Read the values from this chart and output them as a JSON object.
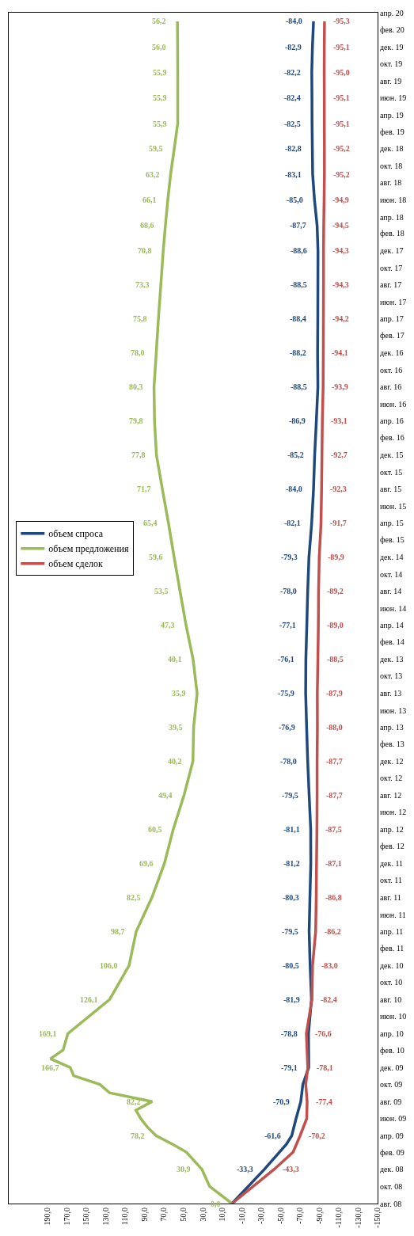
{
  "chart_data": {
    "type": "line",
    "orientation": "horizontal",
    "legend": "left",
    "marker": "none",
    "line_style": "solid",
    "ylim": [
      "2008-08",
      "2020-04"
    ],
    "yticks": [
      {
        "value": "2008-08",
        "label": "авг. 08"
      },
      {
        "value": "2008-10",
        "label": "окт. 08"
      },
      {
        "value": "2008-12",
        "label": "дек. 08"
      },
      {
        "value": "2009-02",
        "label": "фев. 09"
      },
      {
        "value": "2009-04",
        "label": "апр. 09"
      },
      {
        "value": "2009-06",
        "label": "июн. 09"
      },
      {
        "value": "2009-08",
        "label": "авг. 09"
      },
      {
        "value": "2009-10",
        "label": "окт. 09"
      },
      {
        "value": "2009-12",
        "label": "дек. 09"
      },
      {
        "value": "2010-02",
        "label": "фев. 10"
      },
      {
        "value": "2010-04",
        "label": "апр. 10"
      },
      {
        "value": "2010-06",
        "label": "июн. 10"
      },
      {
        "value": "2010-08",
        "label": "авг. 10"
      },
      {
        "value": "2010-10",
        "label": "окт. 10"
      },
      {
        "value": "2010-12",
        "label": "дек. 10"
      },
      {
        "value": "2011-02",
        "label": "фев. 11"
      },
      {
        "value": "2011-04",
        "label": "апр. 11"
      },
      {
        "value": "2011-06",
        "label": "июн. 11"
      },
      {
        "value": "2011-08",
        "label": "авг. 11"
      },
      {
        "value": "2011-10",
        "label": "окт. 11"
      },
      {
        "value": "2011-12",
        "label": "дек. 11"
      },
      {
        "value": "2012-02",
        "label": "фев. 12"
      },
      {
        "value": "2012-04",
        "label": "апр. 12"
      },
      {
        "value": "2012-06",
        "label": "июн. 12"
      },
      {
        "value": "2012-08",
        "label": "авг. 12"
      },
      {
        "value": "2012-10",
        "label": "окт. 12"
      },
      {
        "value": "2012-12",
        "label": "дек. 12"
      },
      {
        "value": "2013-02",
        "label": "фев. 13"
      },
      {
        "value": "2013-04",
        "label": "апр. 13"
      },
      {
        "value": "2013-06",
        "label": "июн. 13"
      },
      {
        "value": "2013-08",
        "label": "авг. 13"
      },
      {
        "value": "2013-10",
        "label": "окт. 13"
      },
      {
        "value": "2013-12",
        "label": "дек. 13"
      },
      {
        "value": "2014-02",
        "label": "фев. 14"
      },
      {
        "value": "2014-04",
        "label": "апр. 14"
      },
      {
        "value": "2014-06",
        "label": "июн. 14"
      },
      {
        "value": "2014-08",
        "label": "авг. 14"
      },
      {
        "value": "2014-10",
        "label": "окт. 14"
      },
      {
        "value": "2014-12",
        "label": "дек. 14"
      },
      {
        "value": "2015-02",
        "label": "фев. 15"
      },
      {
        "value": "2015-04",
        "label": "апр. 15"
      },
      {
        "value": "2015-06",
        "label": "июн. 15"
      },
      {
        "value": "2015-08",
        "label": "авг. 15"
      },
      {
        "value": "2015-10",
        "label": "окт. 15"
      },
      {
        "value": "2015-12",
        "label": "дек. 15"
      },
      {
        "value": "2016-02",
        "label": "фев. 16"
      },
      {
        "value": "2016-04",
        "label": "апр. 16"
      },
      {
        "value": "2016-06",
        "label": "июн. 16"
      },
      {
        "value": "2016-08",
        "label": "авг. 16"
      },
      {
        "value": "2016-10",
        "label": "окт. 16"
      },
      {
        "value": "2016-12",
        "label": "дек. 16"
      },
      {
        "value": "2017-02",
        "label": "фев. 17"
      },
      {
        "value": "2017-04",
        "label": "апр. 17"
      },
      {
        "value": "2017-06",
        "label": "июн. 17"
      },
      {
        "value": "2017-08",
        "label": "авг. 17"
      },
      {
        "value": "2017-10",
        "label": "окт. 17"
      },
      {
        "value": "2017-12",
        "label": "дек. 17"
      },
      {
        "value": "2018-02",
        "label": "фев. 18"
      },
      {
        "value": "2018-04",
        "label": "апр. 18"
      },
      {
        "value": "2018-06",
        "label": "июн. 18"
      },
      {
        "value": "2018-08",
        "label": "авг. 18"
      },
      {
        "value": "2018-10",
        "label": "окт. 18"
      },
      {
        "value": "2018-12",
        "label": "дек. 18"
      },
      {
        "value": "2019-02",
        "label": "фев. 19"
      },
      {
        "value": "2019-04",
        "label": "апр. 19"
      },
      {
        "value": "2019-06",
        "label": "июн. 19"
      },
      {
        "value": "2019-08",
        "label": "авг. 19"
      },
      {
        "value": "2019-10",
        "label": "окт. 19"
      },
      {
        "value": "2019-12",
        "label": "дек. 19"
      },
      {
        "value": "2020-02",
        "label": "фев. 20"
      },
      {
        "value": "2020-04",
        "label": "апр. 20"
      }
    ],
    "xlim": [
      230,
      -150
    ],
    "xticks": [
      {
        "value": 190,
        "label": "190,0"
      },
      {
        "value": 170,
        "label": "170,0"
      },
      {
        "value": 150,
        "label": "150,0"
      },
      {
        "value": 130,
        "label": "130,0"
      },
      {
        "value": 110,
        "label": "110,0"
      },
      {
        "value": 90,
        "label": "90,0"
      },
      {
        "value": 70,
        "label": "70,0"
      },
      {
        "value": 50,
        "label": "50,0"
      },
      {
        "value": 30,
        "label": "30,0"
      },
      {
        "value": 10,
        "label": "10,0"
      },
      {
        "value": -10,
        "label": "-10,0"
      },
      {
        "value": -30,
        "label": "-30,0"
      },
      {
        "value": -50,
        "label": "-50,0"
      },
      {
        "value": -70,
        "label": "-70,0"
      },
      {
        "value": -90,
        "label": "-90,0"
      },
      {
        "value": -110,
        "label": "-110,0"
      },
      {
        "value": -130,
        "label": "-130,0"
      },
      {
        "value": -150,
        "label": "-150,0"
      }
    ],
    "series": [
      {
        "name": "объем спроса",
        "color": "#1f497d",
        "x": [
          "2008-08",
          "2008-12",
          "2009-03",
          "2009-04",
          "2009-06",
          "2009-08",
          "2009-10",
          "2009-12",
          "2010-04",
          "2010-08",
          "2010-12",
          "2011-04",
          "2011-08",
          "2011-12",
          "2012-04",
          "2012-08",
          "2012-12",
          "2013-04",
          "2013-08",
          "2013-12",
          "2014-04",
          "2014-08",
          "2014-12",
          "2015-04",
          "2015-08",
          "2015-12",
          "2016-04",
          "2016-08",
          "2016-12",
          "2017-04",
          "2017-08",
          "2017-12",
          "2018-03",
          "2018-06",
          "2018-09",
          "2018-12",
          "2019-03",
          "2019-06",
          "2019-09",
          "2019-12",
          "2020-03"
        ],
        "values": [
          0,
          -33.3,
          -56,
          -61.6,
          -66,
          -70.9,
          -73,
          -79.1,
          -78.8,
          -81.9,
          -80.5,
          -79.5,
          -80.3,
          -81.2,
          -81.1,
          -79.5,
          -78.0,
          -76.9,
          -75.9,
          -76.1,
          -77.1,
          -78.0,
          -79.3,
          -82.1,
          -84.0,
          -85.2,
          -86.9,
          -88.5,
          -88.2,
          -88.4,
          -88.5,
          -88.6,
          -87.7,
          -85.0,
          -83.1,
          -82.8,
          -82.5,
          -82.4,
          -82.2,
          -82.9,
          -84.0
        ],
        "value_labels": [
          null,
          "-33,3",
          null,
          "-61,6",
          null,
          "-70,9",
          null,
          "-79,1",
          "-78,8",
          "-81,9",
          "-80,5",
          "-79,5",
          "-80,3",
          "-81,2",
          "-81,1",
          "-79,5",
          "-78,0",
          "-76,9",
          "-75,9",
          "-76,1",
          "-77,1",
          "-78,0",
          "-79,3",
          "-82,1",
          "-84,0",
          "-85,2",
          "-86,9",
          "-88,5",
          "-88,2",
          "-88,4",
          "-88,5",
          "-88,6",
          "-87,7",
          "-85,0",
          "-83,1",
          "-82,8",
          "-82,5",
          "-82,4",
          "-82,2",
          "-82,9",
          "-84,0"
        ]
      },
      {
        "name": "объем предложения",
        "color": "#9bbb59",
        "x": [
          "2008-08",
          "2008-10",
          "2008-12",
          "2009-02",
          "2009-03",
          "2009-04",
          "2009-05",
          "2009-06",
          "2009-07",
          "2009-08",
          "2009-09",
          "2009-10",
          "2009-11",
          "2009-12",
          "2010-01",
          "2010-02",
          "2010-04",
          "2010-08",
          "2010-12",
          "2011-04",
          "2011-08",
          "2011-12",
          "2012-04",
          "2012-08",
          "2012-12",
          "2013-04",
          "2013-08",
          "2013-12",
          "2014-04",
          "2014-08",
          "2014-12",
          "2015-04",
          "2015-08",
          "2015-12",
          "2016-04",
          "2016-08",
          "2016-12",
          "2017-04",
          "2017-08",
          "2017-12",
          "2018-03",
          "2018-06",
          "2018-09",
          "2018-12",
          "2019-03",
          "2019-06",
          "2019-09",
          "2019-12",
          "2020-03"
        ],
        "values": [
          0.0,
          23,
          30.9,
          47,
          61,
          78.2,
          87,
          94,
          99,
          82.2,
          126,
          136,
          163,
          166.7,
          187,
          174,
          169.1,
          126.1,
          106.0,
          98.7,
          82.5,
          69.6,
          60.5,
          49.4,
          40.2,
          39.5,
          35.9,
          40.1,
          47.3,
          53.5,
          59.6,
          65.4,
          71.7,
          77.8,
          79.8,
          80.3,
          78.0,
          75.8,
          73.3,
          70.8,
          68.6,
          66.1,
          63.2,
          59.5,
          55.9,
          55.9,
          55.9,
          56.0,
          56.2
        ],
        "value_labels": [
          "0,0",
          null,
          "30,9",
          null,
          null,
          "78,2",
          null,
          null,
          null,
          "82,2",
          null,
          null,
          null,
          "166,7",
          null,
          null,
          "169,1",
          "126,1",
          "106,0",
          "98,7",
          "82,5",
          "69,6",
          "60,5",
          "49,4",
          "40,2",
          "39,5",
          "35,9",
          "40,1",
          "47,3",
          "53,5",
          "59,6",
          "65,4",
          "71,7",
          "77,8",
          "79,8",
          "80,3",
          "78,0",
          "75,8",
          "73,3",
          "70,8",
          "68,6",
          "66,1",
          "63,2",
          "59,5",
          "55,9",
          "55,9",
          "55,9",
          "56,0",
          "56,2"
        ]
      },
      {
        "name": "объем сделок",
        "color": "#c0504d",
        "x": [
          "2008-08",
          "2008-12",
          "2009-02",
          "2009-04",
          "2009-06",
          "2009-08",
          "2009-10",
          "2009-12",
          "2010-04",
          "2010-08",
          "2010-12",
          "2011-04",
          "2011-08",
          "2011-12",
          "2012-04",
          "2012-08",
          "2012-12",
          "2013-04",
          "2013-08",
          "2013-12",
          "2014-04",
          "2014-08",
          "2014-12",
          "2015-04",
          "2015-08",
          "2015-12",
          "2016-04",
          "2016-08",
          "2016-12",
          "2017-04",
          "2017-08",
          "2017-12",
          "2018-03",
          "2018-06",
          "2018-09",
          "2018-12",
          "2019-03",
          "2019-06",
          "2019-09",
          "2019-12",
          "2020-03"
        ],
        "values": [
          0,
          -43.3,
          -63,
          -70.2,
          -77,
          -77.4,
          -76,
          -78.1,
          -76.6,
          -82.4,
          -83.0,
          -86.2,
          -86.8,
          -87.1,
          -87.5,
          -87.7,
          -87.7,
          -88.0,
          -87.9,
          -88.5,
          -89.0,
          -89.2,
          -89.9,
          -91.7,
          -92.3,
          -92.7,
          -93.1,
          -93.9,
          -94.1,
          -94.2,
          -94.3,
          -94.3,
          -94.5,
          -94.9,
          -95.2,
          -95.2,
          -95.1,
          -95.1,
          -95.0,
          -95.1,
          -95.3
        ],
        "value_labels": [
          null,
          "-43,3",
          null,
          "-70,2",
          null,
          "-77,4",
          null,
          "-78,1",
          "-76,6",
          "-82,4",
          "-83,0",
          "-86,2",
          "-86,8",
          "-87,1",
          "-87,5",
          "-87,7",
          "-87,7",
          "-88,0",
          "-87,9",
          "-88,5",
          "-89,0",
          "-89,2",
          "-89,9",
          "-91,7",
          "-92,3",
          "-92,7",
          "-93,1",
          "-93,9",
          "-94,1",
          "-94,2",
          "-94,3",
          "-94,3",
          "-94,5",
          "-94,9",
          "-95,2",
          "-95,2",
          "-95,1",
          "-95,1",
          "-95,0",
          "-95,1",
          "-95,3"
        ]
      }
    ]
  }
}
